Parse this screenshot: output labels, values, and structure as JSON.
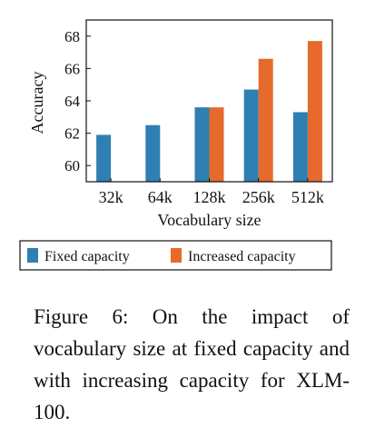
{
  "chart_data": {
    "type": "bar",
    "categories": [
      "32k",
      "64k",
      "128k",
      "256k",
      "512k"
    ],
    "series": [
      {
        "name": "Fixed capacity",
        "values": [
          61.9,
          62.5,
          63.6,
          64.7,
          63.3
        ],
        "color": "#2f7fb3"
      },
      {
        "name": "Increased capacity",
        "values": [
          null,
          null,
          63.6,
          66.6,
          67.7
        ],
        "color": "#e66a2c"
      }
    ],
    "xlabel": "Vocabulary size",
    "ylabel": "Accuracy",
    "ylim": [
      59,
      69
    ],
    "yticks": [
      60,
      62,
      64,
      66,
      68
    ],
    "grid": false,
    "legend_position": "bottom"
  },
  "caption": "Figure 6: On the impact of vocabulary size at fixed capacity and with increasing capacity for XLM-100."
}
